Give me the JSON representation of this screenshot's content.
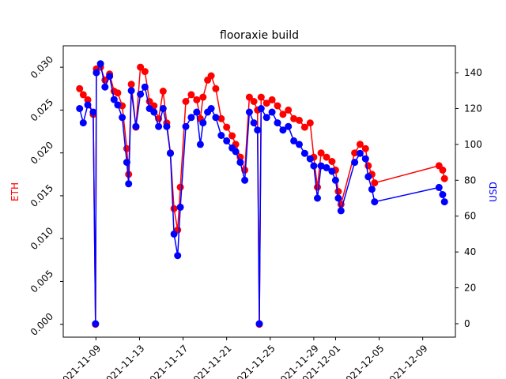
{
  "chart_data": {
    "type": "line",
    "title": "flooraxie build",
    "ylabel_left": "ETH",
    "ylabel_right": "USD",
    "ylabel_left_color": "#ff0000",
    "ylabel_right_color": "#0000ff",
    "x_range": [
      "2021-11-06T00:00",
      "2021-12-12T00:00"
    ],
    "x_ticks": [
      "2021-11-09",
      "2021-11-13",
      "2021-11-17",
      "2021-11-21",
      "2021-11-25",
      "2021-11-29",
      "2021-12-01",
      "2021-12-05",
      "2021-12-09"
    ],
    "y_left_range": [
      -0.0015,
      0.0325
    ],
    "y_left_ticks": [
      "0.000",
      "0.005",
      "0.010",
      "0.015",
      "0.020",
      "0.025",
      "0.030"
    ],
    "y_right_range": [
      -7.5,
      155
    ],
    "y_right_ticks": [
      "0",
      "20",
      "40",
      "60",
      "80",
      "100",
      "120",
      "140"
    ],
    "grid": false,
    "series": [
      {
        "axis": "left",
        "color": "#ff0000",
        "points": [
          [
            "2021-11-07T12:00",
            0.0275
          ],
          [
            "2021-11-07T20:00",
            0.0268
          ],
          [
            "2021-11-08T06:00",
            0.0262
          ],
          [
            "2021-11-08T18:00",
            0.0245
          ],
          [
            "2021-11-08T23:00",
            0.0
          ],
          [
            "2021-11-09T01:00",
            0.0298
          ],
          [
            "2021-11-09T10:00",
            0.03
          ],
          [
            "2021-11-09T20:00",
            0.0285
          ],
          [
            "2021-11-10T06:00",
            0.0292
          ],
          [
            "2021-11-10T16:00",
            0.0272
          ],
          [
            "2021-11-11T00:00",
            0.027
          ],
          [
            "2021-11-11T10:00",
            0.0255
          ],
          [
            "2021-11-11T20:00",
            0.0205
          ],
          [
            "2021-11-12T00:00",
            0.0175
          ],
          [
            "2021-11-12T06:00",
            0.028
          ],
          [
            "2021-11-12T16:00",
            0.023
          ],
          [
            "2021-11-13T02:00",
            0.03
          ],
          [
            "2021-11-13T12:00",
            0.0295
          ],
          [
            "2021-11-13T22:00",
            0.026
          ],
          [
            "2021-11-14T08:00",
            0.0255
          ],
          [
            "2021-11-14T18:00",
            0.024
          ],
          [
            "2021-11-15T04:00",
            0.0272
          ],
          [
            "2021-11-15T12:00",
            0.0235
          ],
          [
            "2021-11-15T20:00",
            0.02
          ],
          [
            "2021-11-16T04:00",
            0.0135
          ],
          [
            "2021-11-16T12:00",
            0.011
          ],
          [
            "2021-11-16T18:00",
            0.016
          ],
          [
            "2021-11-17T06:00",
            0.026
          ],
          [
            "2021-11-17T18:00",
            0.0268
          ],
          [
            "2021-11-18T06:00",
            0.0262
          ],
          [
            "2021-11-18T14:00",
            0.024
          ],
          [
            "2021-11-18T20:00",
            0.0265
          ],
          [
            "2021-11-19T06:00",
            0.0285
          ],
          [
            "2021-11-19T14:00",
            0.029
          ],
          [
            "2021-11-20T00:00",
            0.0275
          ],
          [
            "2021-11-20T12:00",
            0.024
          ],
          [
            "2021-11-21T00:00",
            0.023
          ],
          [
            "2021-11-21T12:00",
            0.022
          ],
          [
            "2021-11-21T20:00",
            0.021
          ],
          [
            "2021-11-22T06:00",
            0.0195
          ],
          [
            "2021-11-22T16:00",
            0.018
          ],
          [
            "2021-11-23T02:00",
            0.0265
          ],
          [
            "2021-11-23T12:00",
            0.026
          ],
          [
            "2021-11-23T20:00",
            0.025
          ],
          [
            "2021-11-24T00:00",
            0.0
          ],
          [
            "2021-11-24T04:00",
            0.0265
          ],
          [
            "2021-11-24T16:00",
            0.0258
          ],
          [
            "2021-11-25T04:00",
            0.0262
          ],
          [
            "2021-11-25T16:00",
            0.0255
          ],
          [
            "2021-11-26T04:00",
            0.0245
          ],
          [
            "2021-11-26T16:00",
            0.025
          ],
          [
            "2021-11-27T04:00",
            0.024
          ],
          [
            "2021-11-27T16:00",
            0.0238
          ],
          [
            "2021-11-28T04:00",
            0.023
          ],
          [
            "2021-11-28T16:00",
            0.0235
          ],
          [
            "2021-11-29T00:00",
            0.0195
          ],
          [
            "2021-11-29T08:00",
            0.016
          ],
          [
            "2021-11-29T16:00",
            0.02
          ],
          [
            "2021-11-30T04:00",
            0.0195
          ],
          [
            "2021-11-30T16:00",
            0.019
          ],
          [
            "2021-12-01T00:00",
            0.018
          ],
          [
            "2021-12-01T06:00",
            0.0155
          ],
          [
            "2021-12-01T12:00",
            0.014
          ],
          [
            "2021-12-02T18:00",
            0.02
          ],
          [
            "2021-12-03T06:00",
            0.021
          ],
          [
            "2021-12-03T18:00",
            0.0205
          ],
          [
            "2021-12-04T00:00",
            0.0185
          ],
          [
            "2021-12-04T08:00",
            0.0175
          ],
          [
            "2021-12-04T14:00",
            0.0165
          ],
          [
            "2021-12-10T12:00",
            0.0185
          ],
          [
            "2021-12-10T20:00",
            0.018
          ],
          [
            "2021-12-11T00:00",
            0.017
          ]
        ]
      },
      {
        "axis": "right",
        "color": "#0000ff",
        "points": [
          [
            "2021-11-07T12:00",
            120
          ],
          [
            "2021-11-07T20:00",
            112
          ],
          [
            "2021-11-08T06:00",
            122
          ],
          [
            "2021-11-08T18:00",
            118
          ],
          [
            "2021-11-08T23:00",
            0
          ],
          [
            "2021-11-09T01:00",
            140
          ],
          [
            "2021-11-09T10:00",
            145
          ],
          [
            "2021-11-09T20:00",
            132
          ],
          [
            "2021-11-10T06:00",
            138
          ],
          [
            "2021-11-10T16:00",
            125
          ],
          [
            "2021-11-11T00:00",
            122
          ],
          [
            "2021-11-11T10:00",
            115
          ],
          [
            "2021-11-11T20:00",
            90
          ],
          [
            "2021-11-12T00:00",
            78
          ],
          [
            "2021-11-12T06:00",
            130
          ],
          [
            "2021-11-12T16:00",
            110
          ],
          [
            "2021-11-13T02:00",
            128
          ],
          [
            "2021-11-13T12:00",
            132
          ],
          [
            "2021-11-13T22:00",
            120
          ],
          [
            "2021-11-14T08:00",
            118
          ],
          [
            "2021-11-14T18:00",
            110
          ],
          [
            "2021-11-15T04:00",
            120
          ],
          [
            "2021-11-15T12:00",
            110
          ],
          [
            "2021-11-15T20:00",
            95
          ],
          [
            "2021-11-16T04:00",
            50
          ],
          [
            "2021-11-16T12:00",
            38
          ],
          [
            "2021-11-16T18:00",
            65
          ],
          [
            "2021-11-17T06:00",
            110
          ],
          [
            "2021-11-17T18:00",
            115
          ],
          [
            "2021-11-18T06:00",
            118
          ],
          [
            "2021-11-18T14:00",
            100
          ],
          [
            "2021-11-18T20:00",
            112
          ],
          [
            "2021-11-19T06:00",
            118
          ],
          [
            "2021-11-19T14:00",
            120
          ],
          [
            "2021-11-20T00:00",
            115
          ],
          [
            "2021-11-20T12:00",
            105
          ],
          [
            "2021-11-21T00:00",
            102
          ],
          [
            "2021-11-21T12:00",
            98
          ],
          [
            "2021-11-21T20:00",
            96
          ],
          [
            "2021-11-22T06:00",
            90
          ],
          [
            "2021-11-22T16:00",
            80
          ],
          [
            "2021-11-23T02:00",
            118
          ],
          [
            "2021-11-23T12:00",
            112
          ],
          [
            "2021-11-23T20:00",
            108
          ],
          [
            "2021-11-24T00:00",
            0
          ],
          [
            "2021-11-24T04:00",
            120
          ],
          [
            "2021-11-24T16:00",
            115
          ],
          [
            "2021-11-25T04:00",
            118
          ],
          [
            "2021-11-25T16:00",
            112
          ],
          [
            "2021-11-26T04:00",
            108
          ],
          [
            "2021-11-26T16:00",
            110
          ],
          [
            "2021-11-27T04:00",
            102
          ],
          [
            "2021-11-27T16:00",
            100
          ],
          [
            "2021-11-28T04:00",
            95
          ],
          [
            "2021-11-28T16:00",
            92
          ],
          [
            "2021-11-29T00:00",
            88
          ],
          [
            "2021-11-29T08:00",
            70
          ],
          [
            "2021-11-29T16:00",
            88
          ],
          [
            "2021-11-30T04:00",
            87
          ],
          [
            "2021-11-30T16:00",
            85
          ],
          [
            "2021-12-01T00:00",
            80
          ],
          [
            "2021-12-01T06:00",
            70
          ],
          [
            "2021-12-01T12:00",
            63
          ],
          [
            "2021-12-02T18:00",
            90
          ],
          [
            "2021-12-03T06:00",
            95
          ],
          [
            "2021-12-03T18:00",
            92
          ],
          [
            "2021-12-04T00:00",
            82
          ],
          [
            "2021-12-04T08:00",
            75
          ],
          [
            "2021-12-04T14:00",
            68
          ],
          [
            "2021-12-10T12:00",
            76
          ],
          [
            "2021-12-10T20:00",
            72
          ],
          [
            "2021-12-11T00:00",
            68
          ]
        ]
      }
    ]
  }
}
